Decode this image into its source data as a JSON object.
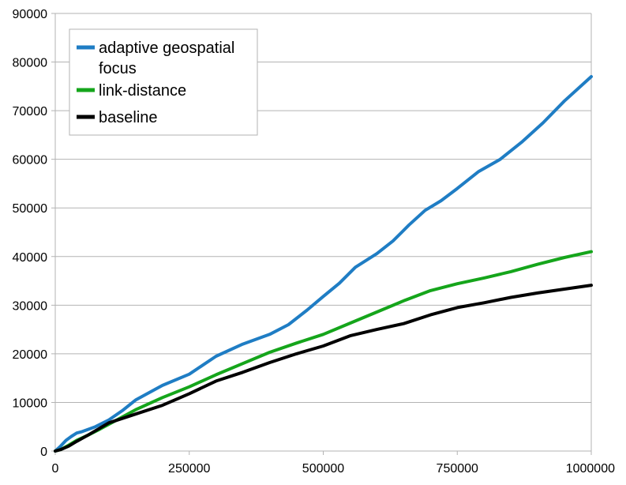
{
  "chart_data": {
    "type": "line",
    "title": "",
    "xlabel": "",
    "ylabel": "",
    "xlim": [
      0,
      1000000
    ],
    "ylim": [
      0,
      90000
    ],
    "x_ticks": [
      0,
      250000,
      500000,
      750000,
      1000000
    ],
    "x_tick_labels": [
      "0",
      "250000",
      "500000",
      "750000",
      "1000000"
    ],
    "y_ticks": [
      0,
      10000,
      20000,
      30000,
      40000,
      50000,
      60000,
      70000,
      80000,
      90000
    ],
    "y_tick_labels": [
      "0",
      "10000",
      "20000",
      "30000",
      "40000",
      "50000",
      "60000",
      "70000",
      "80000",
      "90000"
    ],
    "grid": "horizontal",
    "legend_position": "top-left",
    "series": [
      {
        "name": "adaptive geospatial focus",
        "color": "#1f7dc4",
        "x": [
          0,
          10000,
          20000,
          30000,
          40000,
          50000,
          75000,
          100000,
          125000,
          150000,
          175000,
          200000,
          250000,
          300000,
          350000,
          400000,
          435000,
          470000,
          500000,
          530000,
          560000,
          600000,
          630000,
          660000,
          690000,
          720000,
          750000,
          790000,
          830000,
          870000,
          910000,
          950000,
          1000000
        ],
        "values": [
          0,
          1000,
          2200,
          3000,
          3700,
          4000,
          5000,
          6400,
          8300,
          10500,
          12000,
          13500,
          15800,
          19500,
          22000,
          24000,
          26000,
          29000,
          31800,
          34500,
          37800,
          40600,
          43200,
          46500,
          49500,
          51500,
          54000,
          57500,
          60000,
          63500,
          67500,
          72000,
          77000
        ]
      },
      {
        "name": "link-distance",
        "color": "#15a51b",
        "x": [
          0,
          10000,
          25000,
          40000,
          60000,
          80000,
          100000,
          150000,
          200000,
          250000,
          300000,
          350000,
          400000,
          450000,
          500000,
          550000,
          600000,
          650000,
          700000,
          750000,
          800000,
          850000,
          900000,
          950000,
          1000000
        ],
        "values": [
          0,
          300,
          1200,
          2200,
          3200,
          4300,
          5500,
          8500,
          11000,
          13200,
          15700,
          18000,
          20300,
          22200,
          24000,
          26300,
          28600,
          30900,
          33000,
          34400,
          35600,
          36900,
          38400,
          39800,
          41000
        ]
      },
      {
        "name": "baseline",
        "color": "#000000",
        "x": [
          0,
          10000,
          25000,
          40000,
          60000,
          80000,
          100000,
          150000,
          200000,
          250000,
          300000,
          350000,
          400000,
          450000,
          500000,
          550000,
          600000,
          650000,
          700000,
          750000,
          800000,
          850000,
          900000,
          950000,
          1000000
        ],
        "values": [
          0,
          300,
          1000,
          2000,
          3200,
          4500,
          5800,
          7600,
          9400,
          11800,
          14400,
          16200,
          18200,
          20000,
          21600,
          23700,
          25000,
          26200,
          28000,
          29500,
          30500,
          31600,
          32500,
          33300,
          34100
        ]
      }
    ]
  }
}
